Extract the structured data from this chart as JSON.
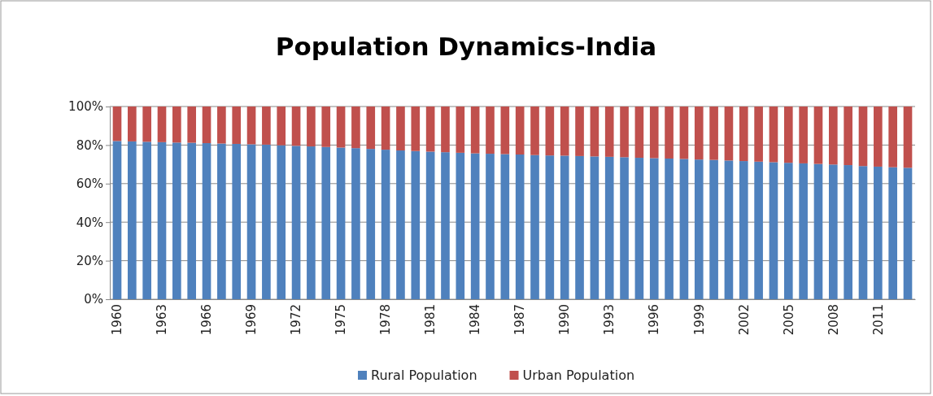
{
  "chart_data": {
    "type": "bar",
    "title": "Population Dynamics-India",
    "stacked": true,
    "categories": [
      "1960",
      null,
      null,
      "1963",
      null,
      null,
      "1966",
      null,
      null,
      "1969",
      null,
      null,
      "1972",
      null,
      null,
      "1975",
      null,
      null,
      "1978",
      null,
      null,
      "1981",
      null,
      null,
      "1984",
      null,
      null,
      "1987",
      null,
      null,
      "1990",
      null,
      null,
      "1993",
      null,
      null,
      "1996",
      null,
      null,
      "1999",
      null,
      null,
      "2002",
      null,
      null,
      "2005",
      null,
      null,
      "2008",
      null,
      null,
      "2011",
      null,
      null
    ],
    "series": [
      {
        "name": "Rural Population",
        "color": "#4f81bd",
        "values": [
          82.1,
          81.9,
          81.7,
          81.5,
          81.3,
          81.2,
          81.0,
          80.8,
          80.6,
          80.4,
          80.2,
          79.9,
          79.6,
          79.3,
          79.0,
          78.7,
          78.4,
          78.0,
          77.6,
          77.2,
          76.9,
          76.6,
          76.3,
          76.0,
          75.7,
          75.5,
          75.3,
          75.1,
          74.8,
          74.6,
          74.5,
          74.3,
          74.1,
          73.9,
          73.7,
          73.4,
          73.2,
          73.0,
          72.8,
          72.5,
          72.3,
          72.0,
          71.7,
          71.4,
          71.1,
          70.8,
          70.5,
          70.2,
          69.9,
          69.6,
          69.1,
          68.8,
          68.5,
          68.2
        ]
      },
      {
        "name": "Urban Population",
        "color": "#c0504d",
        "values": [
          17.9,
          18.1,
          18.3,
          18.5,
          18.7,
          18.8,
          19.0,
          19.2,
          19.4,
          19.6,
          19.8,
          20.1,
          20.4,
          20.7,
          21.0,
          21.3,
          21.6,
          22.0,
          22.4,
          22.8,
          23.1,
          23.4,
          23.7,
          24.0,
          24.3,
          24.5,
          24.7,
          24.9,
          25.2,
          25.4,
          25.5,
          25.7,
          25.9,
          26.1,
          26.3,
          26.6,
          26.8,
          27.0,
          27.2,
          27.5,
          27.7,
          28.0,
          28.3,
          28.6,
          28.9,
          29.2,
          29.5,
          29.8,
          30.1,
          30.4,
          30.9,
          31.2,
          31.5,
          31.8
        ]
      }
    ],
    "ylim": [
      0,
      100
    ],
    "yticks": [
      {
        "value": 0,
        "label": "0%"
      },
      {
        "value": 20,
        "label": "20%"
      },
      {
        "value": 40,
        "label": "40%"
      },
      {
        "value": 60,
        "label": "60%"
      },
      {
        "value": 80,
        "label": "80%"
      },
      {
        "value": 100,
        "label": "100%"
      }
    ],
    "grid": "y",
    "legend": "bottom"
  }
}
